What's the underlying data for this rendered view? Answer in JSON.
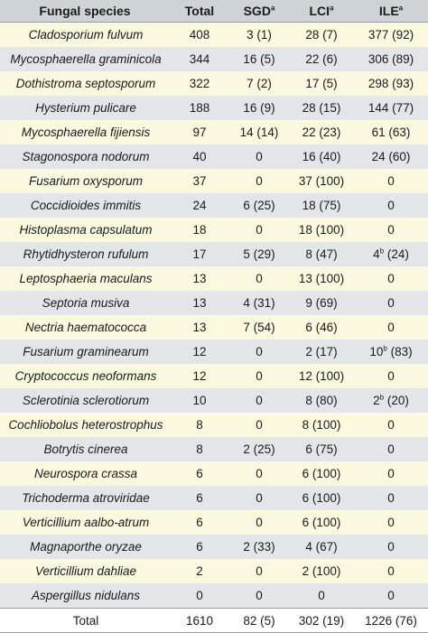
{
  "header": {
    "species": "Fungal species",
    "total": "Total",
    "sgd": "SGD",
    "sgd_sup": "a",
    "lci": "LCI",
    "lci_sup": "a",
    "ile": "ILE",
    "ile_sup": "a"
  },
  "rows": [
    {
      "species": "Cladosporium fulvum",
      "total": "408",
      "sgd": "3 (1)",
      "lci": "28 (7)",
      "ile": "377 (92)",
      "ile_sup": ""
    },
    {
      "species": "Mycosphaerella graminicola",
      "total": "344",
      "sgd": "16 (5)",
      "lci": "22 (6)",
      "ile": "306 (89)",
      "ile_sup": ""
    },
    {
      "species": "Dothistroma septosporum",
      "total": "322",
      "sgd": "7 (2)",
      "lci": "17 (5)",
      "ile": "298 (93)",
      "ile_sup": ""
    },
    {
      "species": "Hysterium pulicare",
      "total": "188",
      "sgd": "16 (9)",
      "lci": "28 (15)",
      "ile": "144 (77)",
      "ile_sup": ""
    },
    {
      "species": "Mycosphaerella fijiensis",
      "total": "97",
      "sgd": "14 (14)",
      "lci": "22 (23)",
      "ile": "61 (63)",
      "ile_sup": ""
    },
    {
      "species": "Stagonospora nodorum",
      "total": "40",
      "sgd": "0",
      "lci": "16 (40)",
      "ile": "24 (60)",
      "ile_sup": ""
    },
    {
      "species": "Fusarium oxysporum",
      "total": "37",
      "sgd": "0",
      "lci": "37 (100)",
      "ile": "0",
      "ile_sup": ""
    },
    {
      "species": "Coccidioides immitis",
      "total": "24",
      "sgd": "6 (25)",
      "lci": "18 (75)",
      "ile": "0",
      "ile_sup": ""
    },
    {
      "species": "Histoplasma capsulatum",
      "total": "18",
      "sgd": "0",
      "lci": "18 (100)",
      "ile": "0",
      "ile_sup": ""
    },
    {
      "species": "Rhytidhysteron rufulum",
      "total": "17",
      "sgd": "5 (29)",
      "lci": "8 (47)",
      "ile": "4",
      "ile_sup": "b",
      "ile_rest": " (24)"
    },
    {
      "species": "Leptosphaeria maculans",
      "total": "13",
      "sgd": "0",
      "lci": "13 (100)",
      "ile": "0",
      "ile_sup": ""
    },
    {
      "species": "Septoria musiva",
      "total": "13",
      "sgd": "4 (31)",
      "lci": "9 (69)",
      "ile": "0",
      "ile_sup": ""
    },
    {
      "species": "Nectria haematococca",
      "total": "13",
      "sgd": "7 (54)",
      "lci": "6 (46)",
      "ile": "0",
      "ile_sup": ""
    },
    {
      "species": "Fusarium graminearum",
      "total": "12",
      "sgd": "0",
      "lci": "2 (17)",
      "ile": "10",
      "ile_sup": "b",
      "ile_rest": " (83)"
    },
    {
      "species": "Cryptococcus neoformans",
      "total": "12",
      "sgd": "0",
      "lci": "12 (100)",
      "ile": "0",
      "ile_sup": ""
    },
    {
      "species": "Sclerotinia sclerotiorum",
      "total": "10",
      "sgd": "0",
      "lci": "8 (80)",
      "ile": "2",
      "ile_sup": "b",
      "ile_rest": " (20)"
    },
    {
      "species": "Cochliobolus heterostrophus",
      "total": "8",
      "sgd": "0",
      "lci": "8 (100)",
      "ile": "0",
      "ile_sup": ""
    },
    {
      "species": "Botrytis cinerea",
      "total": "8",
      "sgd": "2 (25)",
      "lci": "6 (75)",
      "ile": "0",
      "ile_sup": ""
    },
    {
      "species": "Neurospora crassa",
      "total": "6",
      "sgd": "0",
      "lci": "6 (100)",
      "ile": "0",
      "ile_sup": ""
    },
    {
      "species": "Trichoderma atroviridae",
      "total": "6",
      "sgd": "0",
      "lci": "6 (100)",
      "ile": "0",
      "ile_sup": ""
    },
    {
      "species": "Verticillium aalbo-atrum",
      "total": "6",
      "sgd": "0",
      "lci": "6 (100)",
      "ile": "0",
      "ile_sup": ""
    },
    {
      "species": "Magnaporthe oryzae",
      "total": "6",
      "sgd": "2 (33)",
      "lci": "4 (67)",
      "ile": "0",
      "ile_sup": ""
    },
    {
      "species": "Verticillium dahliae",
      "total": "2",
      "sgd": "0",
      "lci": "2 (100)",
      "ile": "0",
      "ile_sup": ""
    },
    {
      "species": "Aspergillus nidulans",
      "total": "0",
      "sgd": "0",
      "lci": "0",
      "ile": "0",
      "ile_sup": ""
    }
  ],
  "footer": {
    "label": "Total",
    "total": "1610",
    "sgd": "82 (5)",
    "lci": "302 (19)",
    "ile": "1226 (76)"
  }
}
